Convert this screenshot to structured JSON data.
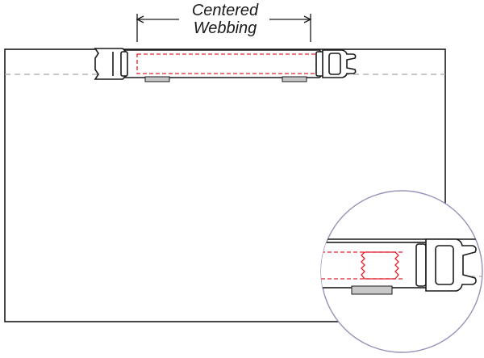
{
  "label": {
    "line1": "Centered",
    "line2": "Webbing"
  },
  "colors": {
    "outline": "#1a1a1a",
    "stitch": "#e0202a",
    "fold_line": "#a8a8a8",
    "inset_circle": "#9a90b8",
    "shadow_strip": "#c8c8c8",
    "background": "#ffffff"
  }
}
